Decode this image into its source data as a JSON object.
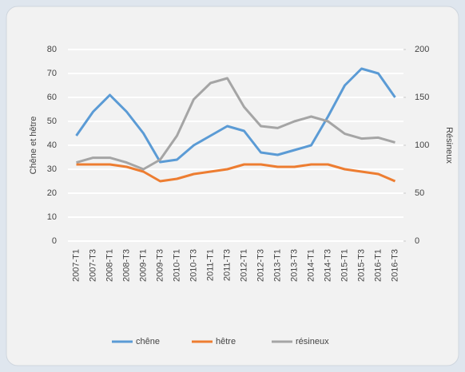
{
  "chart_data": {
    "type": "line",
    "categories": [
      "2007-T1",
      "2007-T3",
      "2008-T1",
      "2008-T3",
      "2009-T1",
      "2009-T3",
      "2010-T1",
      "2010-T3",
      "2011-T1",
      "2011-T3",
      "2012-T1",
      "2012-T3",
      "2013-T1",
      "2013-T3",
      "2014-T1",
      "2014-T3",
      "2015-T1",
      "2015-T3",
      "2016-T1",
      "2016-T3"
    ],
    "series": [
      {
        "name": "chêne",
        "color": "#5b9bd5",
        "values": [
          44,
          54,
          61,
          54,
          45,
          33,
          34,
          40,
          44,
          48,
          46,
          37,
          36,
          38,
          40,
          52,
          65,
          72,
          70,
          60
        ]
      },
      {
        "name": "hêtre",
        "color": "#ed7d31",
        "values": [
          32,
          32,
          32,
          31,
          29,
          25,
          26,
          28,
          29,
          30,
          32,
          32,
          31,
          31,
          32,
          32,
          30,
          29,
          28,
          25
        ]
      },
      {
        "name": "résineux",
        "color": "#a5a5a5",
        "axis": "y2",
        "values": [
          82,
          87,
          87,
          82,
          75,
          85,
          110,
          148,
          165,
          170,
          140,
          120,
          118,
          125,
          130,
          125,
          112,
          107,
          108,
          103
        ]
      }
    ],
    "ylabel": "Chêne et hêtre",
    "y2label": "Résineux",
    "ylim": [
      0,
      80
    ],
    "yticks": [
      0,
      10,
      20,
      30,
      40,
      50,
      60,
      70,
      80
    ],
    "y2lim": [
      0,
      200
    ],
    "y2ticks": [
      0,
      50,
      100,
      150,
      200
    ],
    "grid": true,
    "legend": "bottom"
  }
}
